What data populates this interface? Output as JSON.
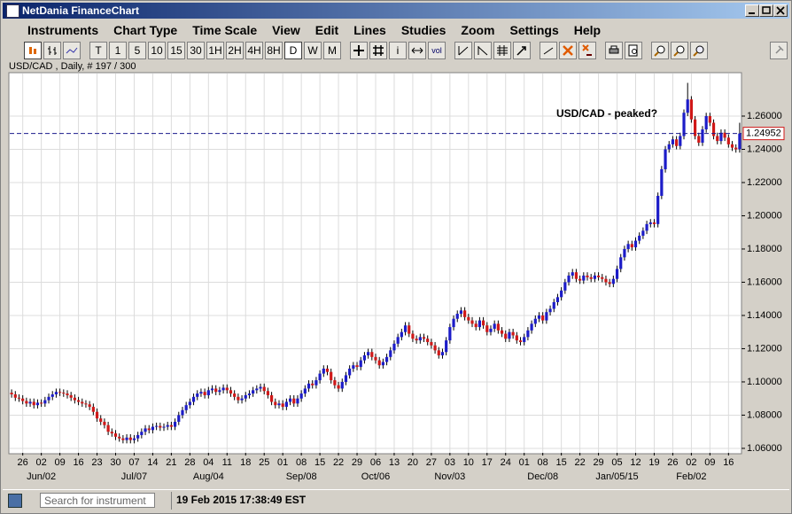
{
  "window": {
    "title": "NetDania FinanceChart"
  },
  "menu": [
    "Instruments",
    "Chart Type",
    "Time Scale",
    "View",
    "Edit",
    "Lines",
    "Studies",
    "Zoom",
    "Settings",
    "Help"
  ],
  "toolbar": {
    "periods": [
      "T",
      "1",
      "5",
      "10",
      "15",
      "30",
      "1H",
      "2H",
      "4H",
      "8H",
      "D",
      "W",
      "M"
    ],
    "info": "i",
    "volume": "vol"
  },
  "chart_data": {
    "type": "candlestick",
    "header": "USD/CAD , Daily, # 197 / 300",
    "annotation": "USD/CAD - peaked?",
    "last_price": 1.24952,
    "up_color": "#1c1cc8",
    "down_color": "#d01818",
    "grid": true,
    "ylim": [
      1.0573,
      1.2856
    ],
    "yticks": [
      {
        "value": 1.06,
        "label": "1.06000"
      },
      {
        "value": 1.08,
        "label": "1.08000"
      },
      {
        "value": 1.1,
        "label": "1.10000"
      },
      {
        "value": 1.12,
        "label": "1.12000"
      },
      {
        "value": 1.14,
        "label": "1.14000"
      },
      {
        "value": 1.16,
        "label": "1.16000"
      },
      {
        "value": 1.18,
        "label": "1.18000"
      },
      {
        "value": 1.2,
        "label": "1.20000"
      },
      {
        "value": 1.22,
        "label": "1.22000"
      },
      {
        "value": 1.24,
        "label": "1.24000"
      },
      {
        "value": 1.26,
        "label": "1.26000"
      }
    ],
    "categories": [
      null,
      null,
      null,
      "26",
      null,
      null,
      null,
      null,
      "02",
      null,
      null,
      null,
      null,
      "09",
      null,
      null,
      null,
      null,
      "16",
      null,
      null,
      null,
      null,
      "23",
      null,
      null,
      null,
      null,
      "30",
      null,
      null,
      null,
      null,
      "07",
      null,
      null,
      null,
      null,
      "14",
      null,
      null,
      null,
      null,
      "21",
      null,
      null,
      null,
      null,
      "28",
      null,
      null,
      null,
      null,
      "04",
      null,
      null,
      null,
      null,
      "11",
      null,
      null,
      null,
      null,
      "18",
      null,
      null,
      null,
      null,
      "25",
      null,
      null,
      null,
      null,
      "01",
      null,
      null,
      null,
      null,
      "08",
      null,
      null,
      null,
      null,
      "15",
      null,
      null,
      null,
      null,
      "22",
      null,
      null,
      null,
      null,
      "29",
      null,
      null,
      null,
      null,
      "06",
      null,
      null,
      null,
      null,
      "13",
      null,
      null,
      null,
      null,
      "20",
      null,
      null,
      null,
      null,
      "27",
      null,
      null,
      null,
      null,
      "03",
      null,
      null,
      null,
      null,
      "10",
      null,
      null,
      null,
      null,
      "17",
      null,
      null,
      null,
      null,
      "24",
      null,
      null,
      null,
      null,
      "01",
      null,
      null,
      null,
      null,
      "08",
      null,
      null,
      null,
      null,
      "15",
      null,
      null,
      null,
      null,
      "22",
      null,
      null,
      null,
      null,
      "29",
      null,
      null,
      null,
      null,
      "05",
      null,
      null,
      null,
      null,
      "12",
      null,
      null,
      null,
      null,
      "19",
      null,
      null,
      null,
      null,
      "26",
      null,
      null,
      null,
      null,
      "02",
      null,
      null,
      null,
      null,
      "09",
      null,
      null,
      null,
      null,
      "16",
      null,
      null,
      null
    ],
    "month_labels": [
      null,
      null,
      null,
      null,
      null,
      null,
      null,
      null,
      "Jun/02",
      null,
      null,
      null,
      null,
      null,
      null,
      null,
      null,
      null,
      null,
      null,
      null,
      null,
      null,
      null,
      null,
      null,
      null,
      null,
      null,
      null,
      null,
      null,
      null,
      "Jul/07",
      null,
      null,
      null,
      null,
      null,
      null,
      null,
      null,
      null,
      null,
      null,
      null,
      null,
      null,
      null,
      null,
      null,
      null,
      null,
      "Aug/04",
      null,
      null,
      null,
      null,
      null,
      null,
      null,
      null,
      null,
      null,
      null,
      null,
      null,
      null,
      null,
      null,
      null,
      null,
      null,
      null,
      null,
      null,
      null,
      null,
      "Sep/08",
      null,
      null,
      null,
      null,
      null,
      null,
      null,
      null,
      null,
      null,
      null,
      null,
      null,
      null,
      null,
      null,
      null,
      null,
      null,
      "Oct/06",
      null,
      null,
      null,
      null,
      null,
      null,
      null,
      null,
      null,
      null,
      null,
      null,
      null,
      null,
      null,
      null,
      null,
      null,
      null,
      "Nov/03",
      null,
      null,
      null,
      null,
      null,
      null,
      null,
      null,
      null,
      null,
      null,
      null,
      null,
      null,
      null,
      null,
      null,
      null,
      null,
      null,
      null,
      null,
      null,
      null,
      "Dec/08",
      null,
      null,
      null,
      null,
      null,
      null,
      null,
      null,
      null,
      null,
      null,
      null,
      null,
      null,
      null,
      null,
      null,
      null,
      null,
      "Jan/05/15",
      null,
      null,
      null,
      null,
      null,
      null,
      null,
      null,
      null,
      null,
      null,
      null,
      null,
      null,
      null,
      null,
      null,
      null,
      null,
      "Feb/02",
      null,
      null,
      null,
      null,
      null,
      null,
      null,
      null,
      null,
      null,
      null,
      null,
      null
    ],
    "open": [
      1.0935,
      1.0925,
      1.0905,
      1.09,
      1.0885,
      1.087,
      1.088,
      1.086,
      1.0875,
      1.087,
      1.089,
      1.091,
      1.0925,
      1.094,
      1.0935,
      1.093,
      1.092,
      1.0905,
      1.089,
      1.088,
      1.087,
      1.0865,
      1.085,
      1.082,
      1.078,
      1.076,
      1.074,
      1.07,
      1.069,
      1.067,
      1.066,
      1.065,
      1.0665,
      1.065,
      1.066,
      1.068,
      1.07,
      1.072,
      1.071,
      1.073,
      1.0735,
      1.0725,
      1.073,
      1.074,
      1.073,
      1.076,
      1.08,
      1.083,
      1.086,
      1.088,
      1.091,
      1.093,
      1.094,
      1.092,
      1.095,
      1.096,
      1.094,
      1.095,
      1.0965,
      1.095,
      1.093,
      1.091,
      1.089,
      1.09,
      1.092,
      1.093,
      1.095,
      1.096,
      1.097,
      1.0945,
      1.092,
      1.088,
      1.086,
      1.087,
      1.085,
      1.088,
      1.09,
      1.087,
      1.09,
      1.093,
      1.096,
      1.099,
      1.098,
      1.101,
      1.105,
      1.108,
      1.106,
      1.101,
      1.098,
      1.096,
      1.1,
      1.104,
      1.108,
      1.11,
      1.109,
      1.113,
      1.116,
      1.118,
      1.115,
      1.113,
      1.11,
      1.112,
      1.115,
      1.119,
      1.123,
      1.127,
      1.13,
      1.134,
      1.129,
      1.126,
      1.125,
      1.127,
      1.126,
      1.124,
      1.122,
      1.119,
      1.116,
      1.118,
      1.125,
      1.133,
      1.138,
      1.141,
      1.143,
      1.139,
      1.137,
      1.135,
      1.133,
      1.137,
      1.134,
      1.13,
      1.132,
      1.135,
      1.131,
      1.129,
      1.126,
      1.13,
      1.128,
      1.125,
      1.124,
      1.127,
      1.131,
      1.135,
      1.138,
      1.14,
      1.137,
      1.142,
      1.144,
      1.148,
      1.151,
      1.155,
      1.16,
      1.164,
      1.166,
      1.162,
      1.161,
      1.164,
      1.163,
      1.162,
      1.164,
      1.163,
      1.162,
      1.16,
      1.159,
      1.162,
      1.168,
      1.175,
      1.18,
      1.183,
      1.181,
      1.185,
      1.188,
      1.191,
      1.195,
      1.196,
      1.195,
      1.212,
      1.228,
      1.24,
      1.243,
      1.246,
      1.242,
      1.248,
      1.262,
      1.27,
      1.258,
      1.248,
      1.244,
      1.252,
      1.26,
      1.256,
      1.248,
      1.245,
      1.25,
      1.247,
      1.243,
      1.241,
      1.24
    ],
    "high": [
      1.0955,
      1.0945,
      1.0925,
      1.092,
      1.0905,
      1.09,
      1.09,
      1.0895,
      1.0895,
      1.091,
      1.093,
      1.0945,
      1.096,
      1.096,
      1.0955,
      1.095,
      1.094,
      1.0925,
      1.091,
      1.09,
      1.089,
      1.0885,
      1.087,
      1.084,
      1.08,
      1.078,
      1.076,
      1.072,
      1.071,
      1.069,
      1.068,
      1.0685,
      1.0685,
      1.068,
      1.07,
      1.072,
      1.074,
      1.074,
      1.075,
      1.0755,
      1.0755,
      1.075,
      1.076,
      1.076,
      1.078,
      1.082,
      1.085,
      1.088,
      1.09,
      1.093,
      1.095,
      1.096,
      1.096,
      1.097,
      1.098,
      1.098,
      1.097,
      1.0985,
      1.0985,
      1.097,
      1.095,
      1.093,
      1.092,
      1.094,
      1.095,
      1.097,
      1.098,
      1.099,
      1.099,
      1.0965,
      1.094,
      1.09,
      1.089,
      1.089,
      1.09,
      1.092,
      1.092,
      1.092,
      1.095,
      1.098,
      1.101,
      1.101,
      1.103,
      1.107,
      1.11,
      1.11,
      1.108,
      1.103,
      1.1,
      1.102,
      1.106,
      1.11,
      1.112,
      1.112,
      1.115,
      1.118,
      1.12,
      1.12,
      1.117,
      1.115,
      1.114,
      1.117,
      1.121,
      1.125,
      1.129,
      1.132,
      1.136,
      1.136,
      1.131,
      1.128,
      1.129,
      1.129,
      1.128,
      1.126,
      1.124,
      1.121,
      1.12,
      1.127,
      1.135,
      1.14,
      1.143,
      1.145,
      1.145,
      1.141,
      1.139,
      1.137,
      1.139,
      1.139,
      1.136,
      1.134,
      1.137,
      1.137,
      1.133,
      1.131,
      1.132,
      1.132,
      1.13,
      1.127,
      1.129,
      1.133,
      1.137,
      1.14,
      1.142,
      1.142,
      1.144,
      1.146,
      1.15,
      1.153,
      1.157,
      1.162,
      1.166,
      1.168,
      1.168,
      1.164,
      1.166,
      1.166,
      1.165,
      1.166,
      1.166,
      1.165,
      1.164,
      1.162,
      1.164,
      1.17,
      1.177,
      1.182,
      1.185,
      1.185,
      1.187,
      1.19,
      1.193,
      1.197,
      1.198,
      1.198,
      1.214,
      1.23,
      1.242,
      1.245,
      1.248,
      1.248,
      1.25,
      1.264,
      1.28,
      1.272,
      1.26,
      1.25,
      1.254,
      1.262,
      1.262,
      1.258,
      1.25,
      1.252,
      1.252,
      1.249,
      1.245,
      1.243,
      1.256
    ],
    "low": [
      1.0905,
      1.0885,
      1.088,
      1.0865,
      1.085,
      1.085,
      1.084,
      1.084,
      1.085,
      1.085,
      1.087,
      1.089,
      1.0905,
      1.0915,
      1.091,
      1.09,
      1.0885,
      1.087,
      1.086,
      1.085,
      1.0845,
      1.083,
      1.08,
      1.076,
      1.074,
      1.072,
      1.068,
      1.067,
      1.065,
      1.064,
      1.063,
      1.063,
      1.063,
      1.063,
      1.064,
      1.066,
      1.068,
      1.069,
      1.069,
      1.071,
      1.0705,
      1.0705,
      1.071,
      1.071,
      1.071,
      1.074,
      1.078,
      1.081,
      1.084,
      1.086,
      1.089,
      1.091,
      1.09,
      1.09,
      1.093,
      1.092,
      1.092,
      1.093,
      1.093,
      1.091,
      1.089,
      1.087,
      1.087,
      1.088,
      1.09,
      1.091,
      1.093,
      1.094,
      1.0925,
      1.09,
      1.086,
      1.084,
      1.084,
      1.083,
      1.083,
      1.086,
      1.085,
      1.085,
      1.088,
      1.091,
      1.094,
      1.096,
      1.096,
      1.099,
      1.103,
      1.104,
      1.099,
      1.096,
      1.094,
      1.094,
      1.098,
      1.102,
      1.106,
      1.107,
      1.107,
      1.111,
      1.114,
      1.113,
      1.111,
      1.108,
      1.108,
      1.11,
      1.113,
      1.117,
      1.121,
      1.125,
      1.128,
      1.127,
      1.124,
      1.123,
      1.123,
      1.124,
      1.122,
      1.12,
      1.117,
      1.114,
      1.114,
      1.116,
      1.123,
      1.131,
      1.136,
      1.139,
      1.137,
      1.135,
      1.133,
      1.131,
      1.131,
      1.132,
      1.128,
      1.128,
      1.13,
      1.129,
      1.127,
      1.124,
      1.124,
      1.126,
      1.123,
      1.122,
      1.122,
      1.125,
      1.129,
      1.133,
      1.136,
      1.135,
      1.135,
      1.14,
      1.142,
      1.146,
      1.149,
      1.153,
      1.158,
      1.162,
      1.16,
      1.159,
      1.159,
      1.161,
      1.16,
      1.16,
      1.161,
      1.16,
      1.158,
      1.157,
      1.157,
      1.16,
      1.166,
      1.173,
      1.178,
      1.179,
      1.179,
      1.183,
      1.186,
      1.189,
      1.193,
      1.193,
      1.193,
      1.21,
      1.226,
      1.238,
      1.241,
      1.24,
      1.24,
      1.246,
      1.26,
      1.256,
      1.246,
      1.242,
      1.242,
      1.25,
      1.254,
      1.246,
      1.243,
      1.243,
      1.245,
      1.241,
      1.239,
      1.238,
      1.238
    ],
    "close": [
      1.0925,
      1.0905,
      1.09,
      1.0885,
      1.087,
      1.088,
      1.086,
      1.0875,
      1.087,
      1.089,
      1.091,
      1.0925,
      1.094,
      1.0935,
      1.093,
      1.092,
      1.0905,
      1.089,
      1.088,
      1.087,
      1.0865,
      1.085,
      1.082,
      1.078,
      1.076,
      1.074,
      1.07,
      1.069,
      1.067,
      1.066,
      1.065,
      1.0665,
      1.065,
      1.066,
      1.068,
      1.07,
      1.072,
      1.071,
      1.073,
      1.0735,
      1.0725,
      1.073,
      1.074,
      1.073,
      1.076,
      1.08,
      1.083,
      1.086,
      1.088,
      1.091,
      1.093,
      1.094,
      1.092,
      1.095,
      1.096,
      1.094,
      1.095,
      1.0965,
      1.095,
      1.093,
      1.091,
      1.089,
      1.09,
      1.092,
      1.093,
      1.095,
      1.096,
      1.097,
      1.0945,
      1.092,
      1.088,
      1.086,
      1.087,
      1.085,
      1.088,
      1.09,
      1.087,
      1.09,
      1.093,
      1.096,
      1.099,
      1.098,
      1.101,
      1.105,
      1.108,
      1.106,
      1.101,
      1.098,
      1.096,
      1.1,
      1.104,
      1.108,
      1.11,
      1.109,
      1.113,
      1.116,
      1.118,
      1.115,
      1.113,
      1.11,
      1.112,
      1.115,
      1.119,
      1.123,
      1.127,
      1.13,
      1.134,
      1.129,
      1.126,
      1.125,
      1.127,
      1.126,
      1.124,
      1.122,
      1.119,
      1.116,
      1.118,
      1.125,
      1.133,
      1.138,
      1.141,
      1.143,
      1.139,
      1.137,
      1.135,
      1.133,
      1.137,
      1.134,
      1.13,
      1.132,
      1.135,
      1.131,
      1.129,
      1.126,
      1.13,
      1.128,
      1.125,
      1.124,
      1.127,
      1.131,
      1.135,
      1.138,
      1.14,
      1.137,
      1.142,
      1.144,
      1.148,
      1.151,
      1.155,
      1.16,
      1.164,
      1.166,
      1.162,
      1.161,
      1.164,
      1.163,
      1.162,
      1.164,
      1.163,
      1.162,
      1.16,
      1.159,
      1.162,
      1.168,
      1.175,
      1.18,
      1.183,
      1.181,
      1.185,
      1.188,
      1.191,
      1.195,
      1.196,
      1.195,
      1.212,
      1.228,
      1.24,
      1.243,
      1.246,
      1.242,
      1.248,
      1.262,
      1.27,
      1.258,
      1.248,
      1.244,
      1.252,
      1.26,
      1.256,
      1.248,
      1.245,
      1.25,
      1.247,
      1.243,
      1.241,
      1.24,
      1.24952
    ]
  },
  "status": {
    "search_placeholder": "Search for instrument",
    "datetime": "19 Feb 2015 17:38:49 EST"
  }
}
